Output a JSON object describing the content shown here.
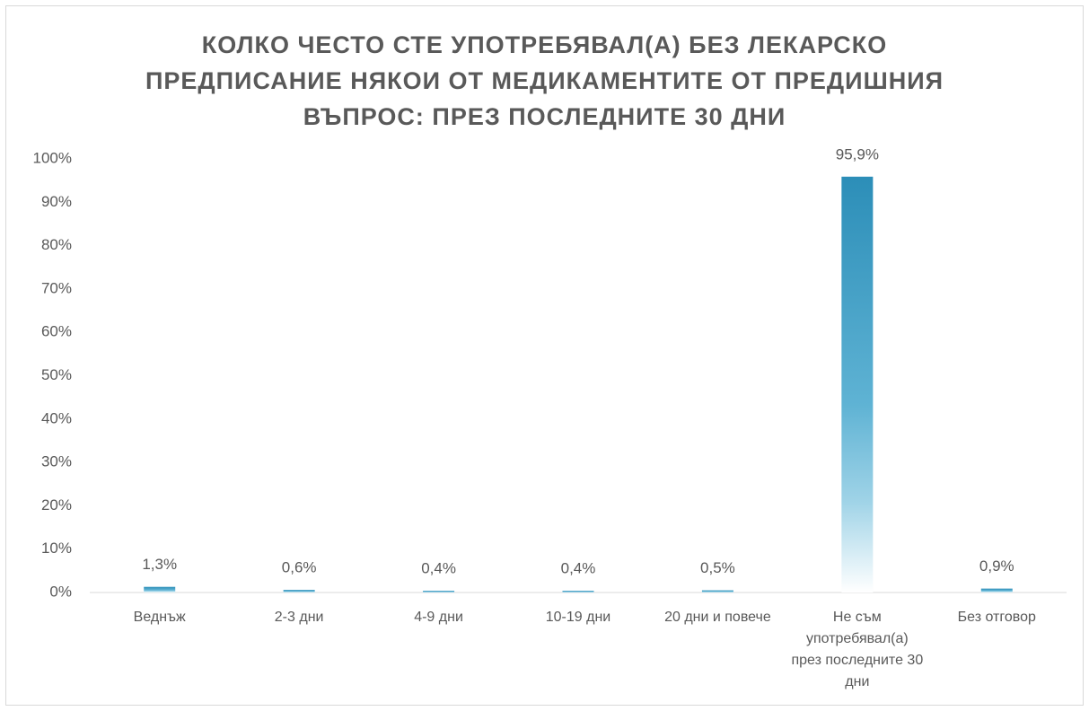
{
  "chart_data": {
    "type": "bar",
    "title": "КОЛКО ЧЕСТО СТЕ УПОТРЕБЯВАЛ(А) БЕЗ ЛЕКАРСКО ПРЕДПИСАНИЕ НЯКОИ ОТ МЕДИКАМЕНТИТЕ ОТ ПРЕДИШНИЯ ВЪПРОС: ПРЕЗ ПОСЛЕДНИТЕ 30 ДНИ",
    "categories": [
      "Веднъж",
      "2-3 дни",
      "4-9 дни",
      "10-19 дни",
      "20 дни и повече",
      "Не съм употребявал(а) през последните 30 дни",
      "Без отговор"
    ],
    "values": [
      1.3,
      0.6,
      0.4,
      0.4,
      0.5,
      95.9,
      0.9
    ],
    "value_labels": [
      "1,3%",
      "0,6%",
      "0,4%",
      "0,4%",
      "0,5%",
      "95,9%",
      "0,9%"
    ],
    "color": "#3196bf",
    "ylim": [
      0,
      100
    ],
    "yticks": [
      {
        "value": 0,
        "label": "0%"
      },
      {
        "value": 10,
        "label": "10%"
      },
      {
        "value": 20,
        "label": "20%"
      },
      {
        "value": 30,
        "label": "30%"
      },
      {
        "value": 40,
        "label": "40%"
      },
      {
        "value": 50,
        "label": "50%"
      },
      {
        "value": 60,
        "label": "60%"
      },
      {
        "value": 70,
        "label": "70%"
      },
      {
        "value": 80,
        "label": "80%"
      },
      {
        "value": 90,
        "label": "90%"
      },
      {
        "value": 100,
        "label": "100%"
      }
    ],
    "grid": false
  }
}
